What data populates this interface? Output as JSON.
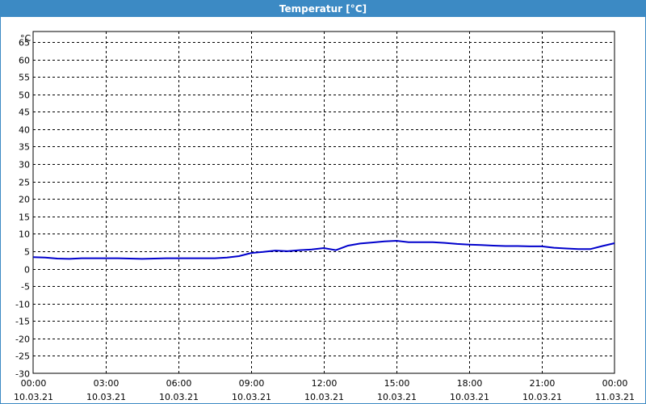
{
  "window": {
    "title": "Temperatur [°C]"
  },
  "chart_data": {
    "type": "line",
    "title": "Temperatur [°C]",
    "ylabel": "°C",
    "xlabel": "",
    "ylim": [
      -30,
      68
    ],
    "yticks": [
      65,
      60,
      55,
      50,
      45,
      40,
      35,
      30,
      25,
      20,
      15,
      10,
      5,
      0,
      -5,
      -10,
      -15,
      -20,
      -25,
      -30
    ],
    "xlim_hours": [
      0,
      24
    ],
    "xticks": [
      {
        "hour": 0,
        "time": "00:00",
        "date": "10.03.21"
      },
      {
        "hour": 3,
        "time": "03:00",
        "date": "10.03.21"
      },
      {
        "hour": 6,
        "time": "06:00",
        "date": "10.03.21"
      },
      {
        "hour": 9,
        "time": "09:00",
        "date": "10.03.21"
      },
      {
        "hour": 12,
        "time": "12:00",
        "date": "10.03.21"
      },
      {
        "hour": 15,
        "time": "15:00",
        "date": "10.03.21"
      },
      {
        "hour": 18,
        "time": "18:00",
        "date": "10.03.21"
      },
      {
        "hour": 21,
        "time": "21:00",
        "date": "10.03.21"
      },
      {
        "hour": 24,
        "time": "00:00",
        "date": "11.03.21"
      }
    ],
    "grid": true,
    "line_color": "#0000cc",
    "series": [
      {
        "x": [
          0,
          0.5,
          1,
          1.5,
          2,
          3,
          3.5,
          4,
          4.5,
          5,
          5.5,
          6,
          6.5,
          7,
          7.5,
          8,
          8.5,
          9,
          9.5,
          10,
          10.5,
          11,
          11.5,
          12,
          12.5,
          13,
          13.5,
          14,
          14.5,
          15,
          15.5,
          16,
          16.5,
          17,
          17.5,
          18,
          18.5,
          19,
          19.5,
          20,
          20.5,
          21,
          21.5,
          22,
          22.5,
          23,
          23.5,
          24
        ],
        "y": [
          3.3,
          3.2,
          2.9,
          2.8,
          3.0,
          3.0,
          3.0,
          2.9,
          2.8,
          2.9,
          3.0,
          3.0,
          3.0,
          3.0,
          3.0,
          3.2,
          3.6,
          4.5,
          4.8,
          5.2,
          5.0,
          5.3,
          5.5,
          5.9,
          5.3,
          6.6,
          7.2,
          7.5,
          7.8,
          8.0,
          7.6,
          7.6,
          7.6,
          7.4,
          7.1,
          6.9,
          6.8,
          6.6,
          6.5,
          6.5,
          6.4,
          6.4,
          6.0,
          5.8,
          5.6,
          5.6,
          6.5,
          7.3
        ]
      }
    ]
  }
}
